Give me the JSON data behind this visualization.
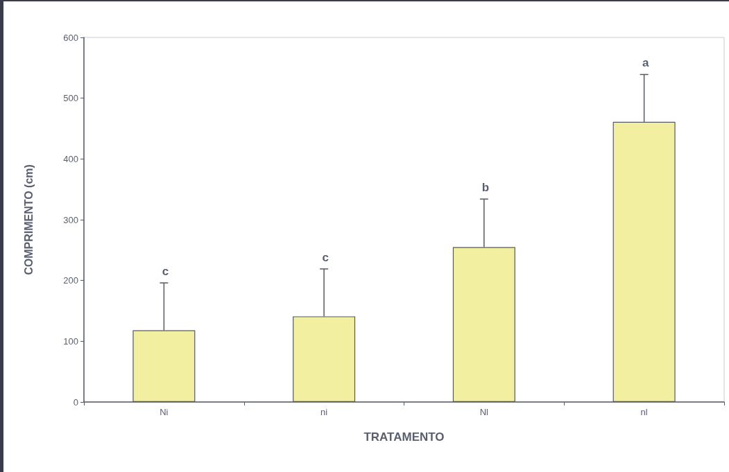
{
  "chart_data": {
    "type": "bar",
    "xlabel": "TRATAMENTO",
    "ylabel": "COMPRIMENTO (cm)",
    "categories": [
      "Ni",
      "ni",
      "Nl",
      "nl"
    ],
    "values": [
      118,
      141,
      255,
      461
    ],
    "errors": [
      78,
      78,
      79,
      78
    ],
    "color": "#f2f0a0",
    "ylim": [
      0,
      600
    ],
    "yticks": [
      0,
      100,
      200,
      300,
      400,
      500,
      600
    ],
    "grid": false,
    "annotations": [
      "c",
      "c",
      "b",
      "a"
    ]
  }
}
